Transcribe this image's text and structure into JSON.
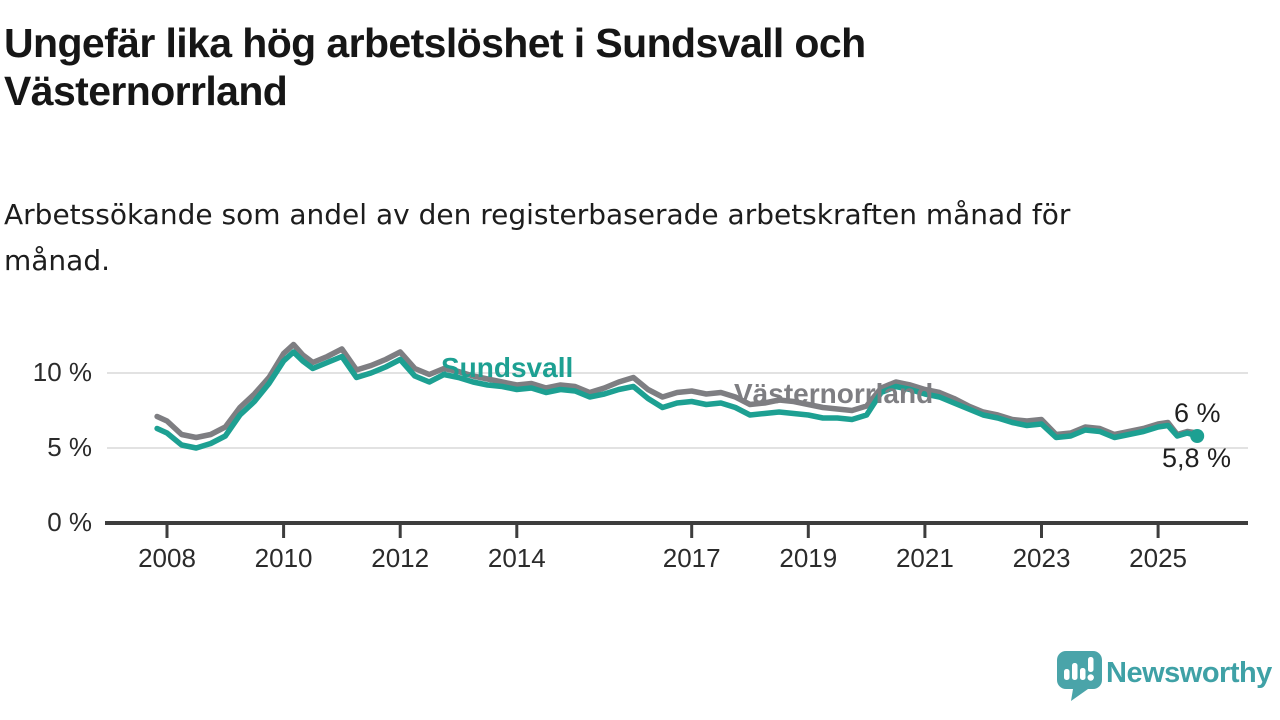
{
  "header": {
    "title": "Ungefär lika hög arbetslöshet i Sundsvall och Västernorrland",
    "subtitle": "Arbetssökande som andel av den registerbaserade arbetskraften månad för månad."
  },
  "chart_data": {
    "type": "line",
    "unit": "%",
    "grid": true,
    "legend_position": "inline-line-labels",
    "style": {
      "grid_color": "#e2e2e2",
      "axis_color": "#3d3d3d",
      "tick_label_color": "#2b2b2b"
    },
    "y_axis": {
      "range": [
        0,
        12.5
      ],
      "ticks": [
        {
          "value": 0,
          "label": "0 %",
          "grid": false
        },
        {
          "value": 5,
          "label": "5 %",
          "grid": true
        },
        {
          "value": 10,
          "label": "10 %",
          "grid": true
        }
      ]
    },
    "x_axis": {
      "range": [
        2007.8,
        2025.9
      ],
      "ticks": [
        2008,
        2010,
        2012,
        2014,
        2017,
        2019,
        2021,
        2023,
        2025
      ]
    },
    "x": [
      2007.83,
      2008,
      2008.25,
      2008.5,
      2008.75,
      2009,
      2009.25,
      2009.5,
      2009.75,
      2010,
      2010.17,
      2010.33,
      2010.5,
      2010.75,
      2011,
      2011.25,
      2011.5,
      2011.75,
      2012,
      2012.25,
      2012.5,
      2012.75,
      2013,
      2013.25,
      2013.5,
      2013.75,
      2014,
      2014.25,
      2014.5,
      2014.75,
      2015,
      2015.25,
      2015.5,
      2015.75,
      2016,
      2016.25,
      2016.5,
      2016.75,
      2017,
      2017.25,
      2017.5,
      2017.75,
      2018,
      2018.25,
      2018.5,
      2018.75,
      2019,
      2019.25,
      2019.5,
      2019.75,
      2020,
      2020.25,
      2020.5,
      2020.75,
      2021,
      2021.25,
      2021.5,
      2021.75,
      2022,
      2022.25,
      2022.5,
      2022.75,
      2023,
      2023.25,
      2023.5,
      2023.75,
      2024,
      2024.25,
      2024.5,
      2024.75,
      2025,
      2025.17,
      2025.33,
      2025.5,
      2025.67
    ],
    "series": [
      {
        "name": "Västernorrland",
        "slug": "vasternorrland",
        "color": "#7e7e82",
        "end_label": "6 %",
        "end_dot": false,
        "values": [
          7.1,
          6.8,
          5.9,
          5.7,
          5.9,
          6.4,
          7.7,
          8.6,
          9.7,
          11.3,
          11.9,
          11.2,
          10.7,
          11.1,
          11.6,
          10.2,
          10.5,
          10.9,
          11.4,
          10.3,
          9.9,
          10.3,
          10.1,
          9.8,
          9.6,
          9.4,
          9.2,
          9.3,
          9.0,
          9.2,
          9.1,
          8.7,
          9.0,
          9.4,
          9.7,
          8.9,
          8.4,
          8.7,
          8.8,
          8.6,
          8.7,
          8.4,
          7.9,
          8.0,
          8.2,
          8.1,
          7.9,
          7.7,
          7.6,
          7.5,
          7.8,
          9.0,
          9.4,
          9.2,
          8.9,
          8.7,
          8.3,
          7.8,
          7.4,
          7.2,
          6.9,
          6.8,
          6.9,
          5.9,
          6.0,
          6.4,
          6.3,
          5.9,
          6.1,
          6.3,
          6.6,
          6.7,
          5.9,
          6.1,
          6.0
        ]
      },
      {
        "name": "Sundsvall",
        "slug": "sundsvall",
        "color": "#1da092",
        "end_label": "5,8 %",
        "end_dot": true,
        "values": [
          6.3,
          6.0,
          5.2,
          5.0,
          5.3,
          5.8,
          7.2,
          8.1,
          9.3,
          10.8,
          11.4,
          10.8,
          10.3,
          10.7,
          11.1,
          9.7,
          10.0,
          10.4,
          10.9,
          9.8,
          9.4,
          9.9,
          9.7,
          9.4,
          9.2,
          9.1,
          8.9,
          9.0,
          8.7,
          8.9,
          8.8,
          8.4,
          8.6,
          8.9,
          9.1,
          8.3,
          7.7,
          8.0,
          8.1,
          7.9,
          8.0,
          7.7,
          7.2,
          7.3,
          7.4,
          7.3,
          7.2,
          7.0,
          7.0,
          6.9,
          7.2,
          8.7,
          9.1,
          8.9,
          8.6,
          8.4,
          8.0,
          7.6,
          7.2,
          7.0,
          6.7,
          6.5,
          6.6,
          5.7,
          5.8,
          6.2,
          6.1,
          5.7,
          5.9,
          6.1,
          6.4,
          6.5,
          5.8,
          6.0,
          5.8
        ]
      }
    ]
  },
  "footer": {
    "brand": "Newsworthy",
    "brand_color": "#3fa1a6",
    "logo_bubble_color": "#4aa4a9",
    "logo_icon": "bar-chart-exclamation-speech-bubble"
  }
}
